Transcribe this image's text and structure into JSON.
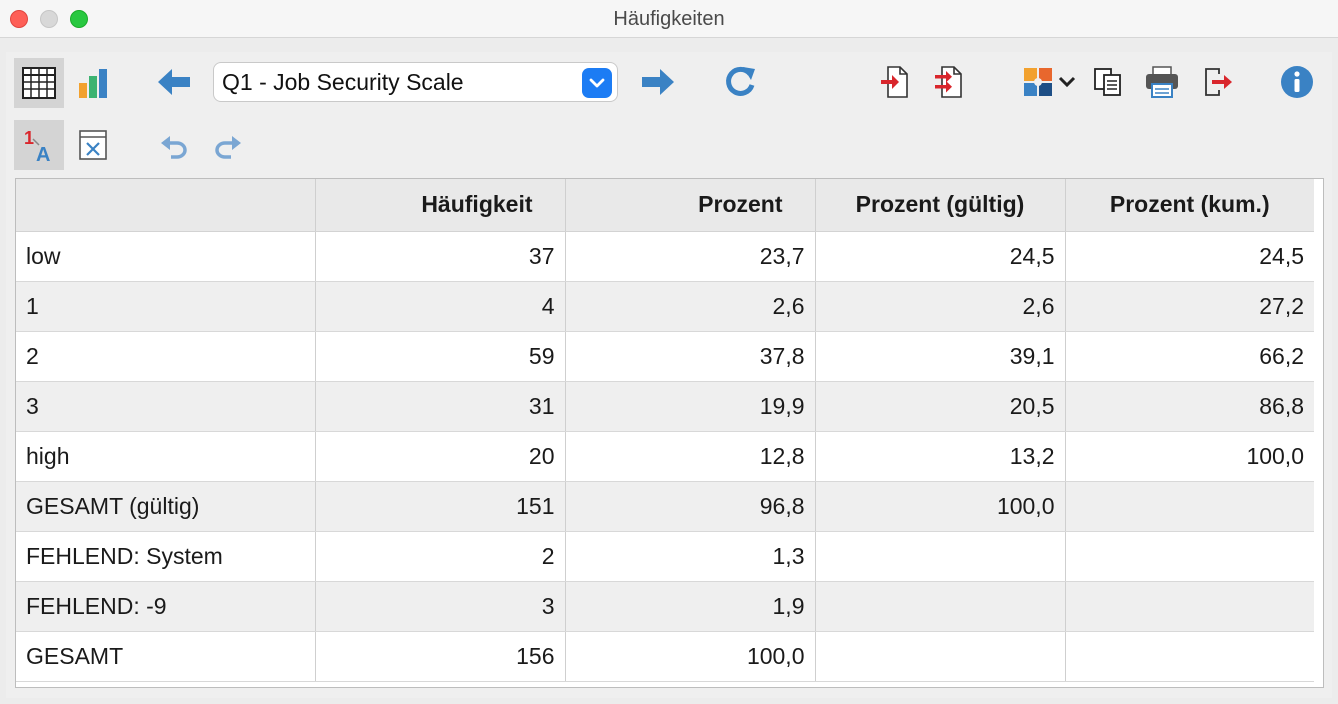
{
  "window": {
    "title": "Häufigkeiten"
  },
  "toolbar": {
    "variable_select": {
      "value": "Q1 - Job Security Scale"
    },
    "icons": [
      "table-view-icon",
      "bar-chart-icon",
      "arrow-left-icon",
      "arrow-right-icon",
      "refresh-icon",
      "export-icon",
      "export-all-icon",
      "smart-publisher-icon",
      "chevron-down-icon",
      "copy-icon",
      "print-icon",
      "exit-icon",
      "info-icon",
      "value-labels-icon",
      "delete-table-icon",
      "undo-icon",
      "redo-icon"
    ]
  },
  "table": {
    "headers": [
      "",
      "Häufigkeit",
      "Prozent",
      "Prozent (gültig)",
      "Prozent (kum.)"
    ],
    "rows": [
      [
        "low",
        "37",
        "23,7",
        "24,5",
        "24,5"
      ],
      [
        "1",
        "4",
        "2,6",
        "2,6",
        "27,2"
      ],
      [
        "2",
        "59",
        "37,8",
        "39,1",
        "66,2"
      ],
      [
        "3",
        "31",
        "19,9",
        "20,5",
        "86,8"
      ],
      [
        "high",
        "20",
        "12,8",
        "13,2",
        "100,0"
      ],
      [
        "GESAMT (gültig)",
        "151",
        "96,8",
        "100,0",
        ""
      ],
      [
        "FEHLEND: System",
        "2",
        "1,3",
        "",
        ""
      ],
      [
        "FEHLEND: -9",
        "3",
        "1,9",
        "",
        ""
      ],
      [
        "GESAMT",
        "156",
        "100,0",
        "",
        ""
      ]
    ]
  },
  "colors": {
    "accent_blue": "#1c7cf4",
    "icon_blue": "#3a82c4",
    "icon_red": "#d9262c",
    "icon_orange": "#f2a12e"
  }
}
